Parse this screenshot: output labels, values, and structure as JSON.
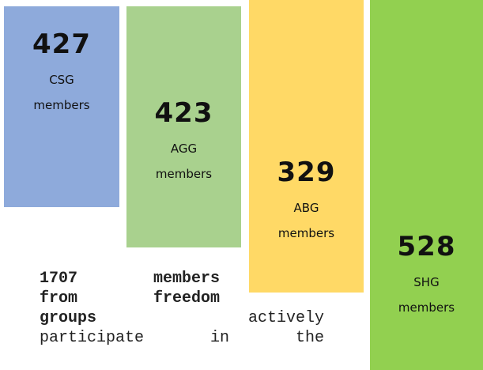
{
  "boxes": [
    {
      "number": "427",
      "group": "CSG",
      "label": "members",
      "color": "#8eaadb"
    },
    {
      "number": "423",
      "group": "AGG",
      "label": "members",
      "color": "#a9d18e"
    },
    {
      "number": "329",
      "group": "ABG",
      "label": "members",
      "color": "#ffd966"
    },
    {
      "number": "528",
      "group": "SHG",
      "label": "members",
      "color": "#92d050"
    }
  ],
  "paragraph": {
    "lines": [
      [
        {
          "text": "1707 members",
          "bold": true
        }
      ],
      [
        {
          "text": "from freedom",
          "bold": true
        }
      ],
      [
        {
          "text": "groups",
          "bold": true
        },
        {
          "text": "actively",
          "bold": false
        }
      ],
      [
        {
          "text": "participate in the",
          "bold": false
        }
      ]
    ]
  }
}
